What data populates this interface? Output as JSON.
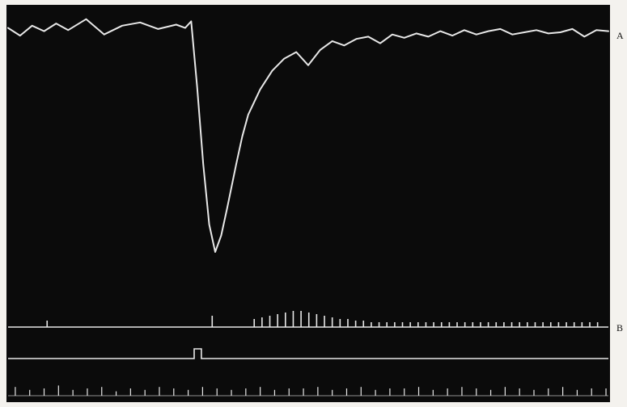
{
  "figure": {
    "labels": [
      "A",
      "B"
    ]
  },
  "chart_data": {
    "type": "line",
    "title": "",
    "xlabel": "",
    "ylabel": "",
    "grid": false,
    "legend": "none",
    "colors": {
      "paper": "#f4f2ee",
      "frame": "#0b0b0b",
      "trace": "#e8e8e8"
    },
    "x_range": [
      0,
      100
    ],
    "series": [
      {
        "label_key": "A",
        "kind": "waveform",
        "ylim": [
          -20,
          0
        ],
        "x": [
          0,
          2,
          4,
          6,
          8,
          10,
          13,
          16,
          19,
          22,
          25,
          28,
          29.5,
          30.5,
          31.5,
          32.5,
          33.5,
          34.5,
          35.5,
          36.5,
          38,
          39,
          40,
          42,
          44,
          46,
          48,
          50,
          52,
          54,
          56,
          58,
          60,
          62,
          64,
          66,
          68,
          70,
          72,
          74,
          76,
          78,
          80,
          82,
          84,
          86,
          88,
          90,
          92,
          94,
          96,
          98,
          100
        ],
        "values": [
          0.4,
          -0.3,
          0.6,
          0.1,
          0.8,
          0.2,
          1.2,
          -0.2,
          0.6,
          0.9,
          0.3,
          0.7,
          0.4,
          1.0,
          -5.0,
          -12.0,
          -17.5,
          -20.0,
          -18.5,
          -16.0,
          -12.0,
          -9.5,
          -7.5,
          -5.2,
          -3.5,
          -2.4,
          -1.8,
          -3.0,
          -1.6,
          -0.8,
          -1.2,
          -0.6,
          -0.4,
          -1.0,
          -0.2,
          -0.5,
          -0.1,
          -0.4,
          0.1,
          -0.3,
          0.2,
          -0.2,
          0.1,
          0.3,
          -0.2,
          0.0,
          0.2,
          -0.1,
          0.0,
          0.3,
          -0.4,
          0.2,
          0.1
        ]
      },
      {
        "label_key": "B",
        "kind": "spikes",
        "baseline": 0,
        "x": [
          6.5,
          34.0,
          41.0,
          42.3,
          43.6,
          44.9,
          46.2,
          47.5,
          48.8,
          50.1,
          51.4,
          52.7,
          54.0,
          55.3,
          56.6,
          57.9,
          59.2,
          60.5,
          61.8,
          63.1,
          64.4,
          65.7,
          67.0,
          68.3,
          69.6,
          70.9,
          72.2,
          73.5,
          74.8,
          76.1,
          77.4,
          78.7,
          80.0,
          81.3,
          82.6,
          83.9,
          85.2,
          86.5,
          87.8,
          89.1,
          90.4,
          91.7,
          93.0,
          94.3,
          95.6,
          96.9,
          98.2
        ],
        "values": [
          0.4,
          0.7,
          0.5,
          0.6,
          0.7,
          0.8,
          0.9,
          1.0,
          1.0,
          0.9,
          0.8,
          0.7,
          0.6,
          0.5,
          0.5,
          0.4,
          0.4,
          0.3,
          0.3,
          0.3,
          0.3,
          0.3,
          0.3,
          0.3,
          0.3,
          0.3,
          0.3,
          0.3,
          0.3,
          0.3,
          0.3,
          0.3,
          0.3,
          0.3,
          0.3,
          0.3,
          0.3,
          0.3,
          0.3,
          0.3,
          0.3,
          0.3,
          0.3,
          0.3,
          0.3,
          0.3,
          0.3
        ]
      },
      {
        "kind": "signal-marker",
        "x": [
          0,
          31.0,
          31.0,
          32.2,
          32.2,
          100
        ],
        "values": [
          0,
          0,
          1,
          1,
          0,
          0
        ]
      },
      {
        "kind": "time-marks",
        "x": [
          1.2,
          3.6,
          6.0,
          8.4,
          10.8,
          13.2,
          15.6,
          18.0,
          20.4,
          22.8,
          25.2,
          27.6,
          30.0,
          32.4,
          34.8,
          37.2,
          39.6,
          42.0,
          44.4,
          46.8,
          49.2,
          51.6,
          54.0,
          56.4,
          58.8,
          61.2,
          63.6,
          66.0,
          68.4,
          70.8,
          73.2,
          75.6,
          78.0,
          80.4,
          82.8,
          85.2,
          87.6,
          90.0,
          92.4,
          94.8,
          97.2,
          99.6
        ],
        "values": [
          0.6,
          0.4,
          0.5,
          0.7,
          0.4,
          0.5,
          0.6,
          0.3,
          0.5,
          0.4,
          0.6,
          0.5,
          0.4,
          0.6,
          0.5,
          0.4,
          0.5,
          0.6,
          0.4,
          0.5,
          0.5,
          0.6,
          0.4,
          0.5,
          0.6,
          0.4,
          0.5,
          0.5,
          0.6,
          0.4,
          0.5,
          0.6,
          0.5,
          0.4,
          0.6,
          0.5,
          0.4,
          0.5,
          0.6,
          0.4,
          0.5,
          0.5
        ]
      }
    ]
  }
}
